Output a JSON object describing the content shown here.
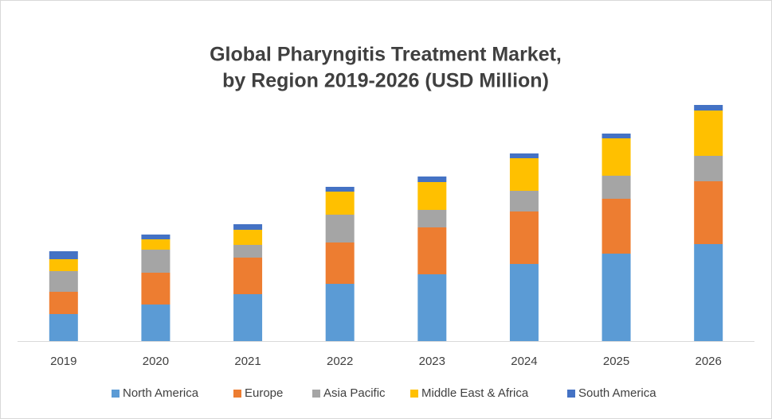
{
  "chart_data": {
    "type": "stacked_bar",
    "title": [
      "Global Pharyngitis Treatment Market,",
      "by Region 2019-2026 (USD Million)"
    ],
    "categories": [
      "2019",
      "2020",
      "2021",
      "2022",
      "2023",
      "2024",
      "2025",
      "2026"
    ],
    "series": [
      {
        "name": "North America",
        "color": "#5b9bd5",
        "values": [
          34,
          46,
          59,
          72,
          84,
          97,
          110,
          122
        ]
      },
      {
        "name": "Europe",
        "color": "#ed7d31",
        "values": [
          28,
          40,
          46,
          52,
          59,
          66,
          69,
          79
        ]
      },
      {
        "name": "Asia Pacific",
        "color": "#a5a5a5",
        "values": [
          26,
          29,
          16,
          35,
          22,
          26,
          29,
          32
        ]
      },
      {
        "name": "Middle East & Africa",
        "color": "#ffc000",
        "values": [
          15,
          13,
          19,
          29,
          35,
          41,
          47,
          57
        ]
      },
      {
        "name": "South America",
        "color": "#4472c4",
        "values": [
          10,
          6,
          7,
          6,
          7,
          6,
          6,
          7
        ]
      }
    ],
    "ylim": [
      0,
      300
    ],
    "legend": "bottom"
  }
}
